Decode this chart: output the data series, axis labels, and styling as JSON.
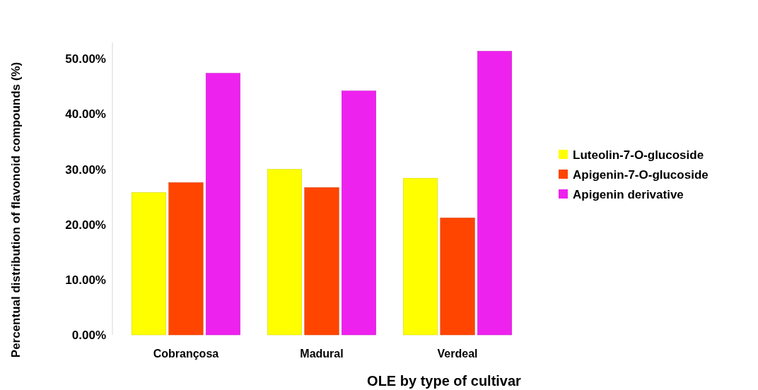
{
  "chart_data": {
    "type": "bar",
    "xlabel": "OLE by type of cultivar",
    "ylabel": "Percentual distribution of flavonoid compounds (%)",
    "categories": [
      "Cobrançosa",
      "Madural",
      "Verdeal"
    ],
    "series": [
      {
        "name": "Luteolin-7-O-glucoside",
        "color": "#ffff00",
        "values": [
          25.8,
          30.0,
          28.4
        ]
      },
      {
        "name": "Apigenin-7-O-glucoside",
        "color": "#ff4500",
        "values": [
          27.6,
          26.7,
          21.2
        ]
      },
      {
        "name": "Apigenin derivative",
        "color": "#ee22ee",
        "values": [
          47.4,
          44.2,
          51.4
        ]
      }
    ],
    "ylim": [
      0,
      53
    ],
    "yticks": [
      {
        "value": 0,
        "label": "0.00%"
      },
      {
        "value": 10,
        "label": "10.00%"
      },
      {
        "value": 20,
        "label": "20.00%"
      },
      {
        "value": 30,
        "label": "30.00%"
      },
      {
        "value": 40,
        "label": "40.00%"
      },
      {
        "value": 50,
        "label": "50.00%"
      }
    ],
    "legend": "right",
    "grid": false
  }
}
